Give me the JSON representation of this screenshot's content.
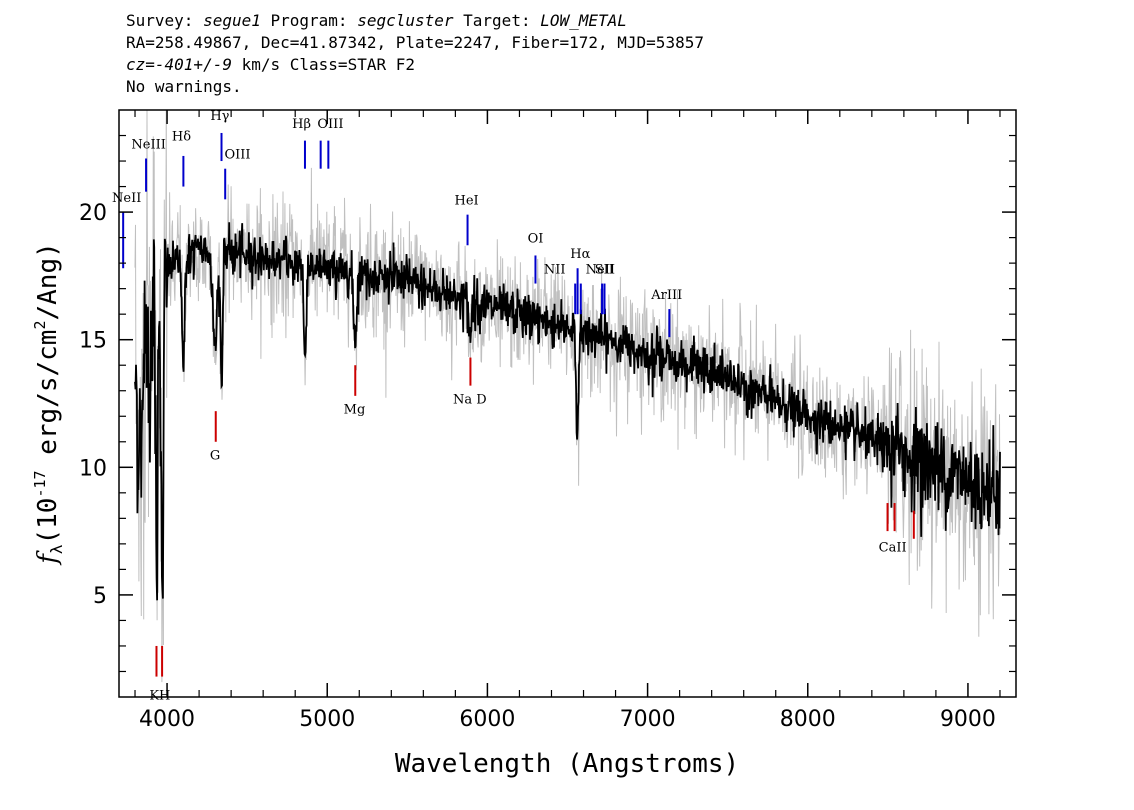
{
  "header": {
    "line1": {
      "survey_label": "Survey: ",
      "survey": "segue1",
      "program_label": " Program: ",
      "program": "segcluster",
      "target_label": " Target: ",
      "target": "LOW_METAL"
    },
    "line2": "RA=258.49867, Dec=41.87342, Plate=2247, Fiber=172, MJD=53857",
    "line3": {
      "cz": "cz",
      "cz_value": "=-401+/-9",
      "rest": " km/s Class=STAR F2"
    },
    "line4": "No warnings."
  },
  "colors": {
    "flux": "#000000",
    "error": "#c0c0c0",
    "emission": "#0000cc",
    "absorption": "#cc0000"
  },
  "chart_data": {
    "type": "line",
    "xlabel": "Wavelength (Angstroms)",
    "ylabel_text": "(10",
    "ylabel_exp": "-17",
    "ylabel_rest": " erg/s/cm",
    "ylabel_exp2": "2",
    "ylabel_end": "/Ang)",
    "ylabel_symbol": "f",
    "ylabel_sub": "λ",
    "xlim": [
      3700,
      9300
    ],
    "ylim": [
      1.0,
      24.0
    ],
    "xticks": [
      4000,
      5000,
      6000,
      7000,
      8000,
      9000
    ],
    "yticks": [
      5,
      10,
      15,
      20
    ],
    "continuum": {
      "x": [
        3800,
        3900,
        4000,
        4200,
        4500,
        5000,
        5500,
        6000,
        6500,
        7000,
        7500,
        8000,
        8500,
        9000,
        9200
      ],
      "y": [
        14.0,
        16.5,
        17.8,
        18.5,
        18.3,
        17.8,
        17.3,
        16.3,
        15.5,
        14.5,
        13.5,
        12.0,
        10.8,
        9.5,
        9.0
      ]
    },
    "absorption_features": [
      {
        "x": 3820,
        "depth": 3.5,
        "width": 8
      },
      {
        "x": 3840,
        "depth": 6.0,
        "width": 6
      },
      {
        "x": 3890,
        "depth": 4.0,
        "width": 6
      },
      {
        "x": 3935,
        "depth": 11.0,
        "width": 6
      },
      {
        "x": 3970,
        "depth": 13.5,
        "width": 7
      },
      {
        "x": 4102,
        "depth": 4.5,
        "width": 7
      },
      {
        "x": 4300,
        "depth": 4.0,
        "width": 12
      },
      {
        "x": 4340,
        "depth": 5.0,
        "width": 7
      },
      {
        "x": 4861,
        "depth": 4.0,
        "width": 7
      },
      {
        "x": 5175,
        "depth": 2.5,
        "width": 10
      },
      {
        "x": 5890,
        "depth": 1.5,
        "width": 8
      },
      {
        "x": 6563,
        "depth": 4.0,
        "width": 8
      }
    ],
    "emission_lines": [
      {
        "label": "NeII",
        "x": 3726,
        "y_bottom": 17.8,
        "y_top": 20.0,
        "lx": 3748,
        "ly": 20.4
      },
      {
        "label": "NeIII",
        "x": 3869,
        "y_bottom": 20.8,
        "y_top": 22.1,
        "lx": 3885,
        "ly": 22.5
      },
      {
        "label": "Hδ",
        "x": 4102,
        "y_bottom": 21.0,
        "y_top": 22.2,
        "lx": 4090,
        "ly": 22.8
      },
      {
        "label": "Hγ",
        "x": 4340,
        "y_bottom": 22.0,
        "y_top": 23.1,
        "lx": 4330,
        "ly": 23.6
      },
      {
        "label": "OIII",
        "x": 4363,
        "y_bottom": 20.5,
        "y_top": 21.7,
        "lx": 4440,
        "ly": 22.1
      },
      {
        "label": "Hβ",
        "x": 4861,
        "y_bottom": 21.7,
        "y_top": 22.8,
        "lx": 4840,
        "ly": 23.3
      },
      {
        "label": "OIII",
        "x": 4959,
        "y_bottom": 21.7,
        "y_top": 22.8,
        "lx": 5020,
        "ly": 23.3
      },
      {
        "label": "OIII",
        "x": 5007,
        "y_bottom": 21.7,
        "y_top": 22.8
      },
      {
        "label": "HeI",
        "x": 5876,
        "y_bottom": 18.7,
        "y_top": 19.9,
        "lx": 5870,
        "ly": 20.3
      },
      {
        "label": "OI",
        "x": 6300,
        "y_bottom": 17.2,
        "y_top": 18.3,
        "lx": 6300,
        "ly": 18.8
      },
      {
        "label": "NII",
        "x": 6548,
        "y_bottom": 16.0,
        "y_top": 17.2,
        "lx": 6420,
        "ly": 17.6
      },
      {
        "label": "Hα",
        "x": 6563,
        "y_bottom": 16.0,
        "y_top": 17.8,
        "lx": 6580,
        "ly": 18.2
      },
      {
        "label": "NII",
        "x": 6583,
        "y_bottom": 16.0,
        "y_top": 17.2
      },
      {
        "label": "SII",
        "x": 6716,
        "y_bottom": 16.0,
        "y_top": 17.2,
        "lx": 6730,
        "ly": 17.6
      },
      {
        "label": "SII",
        "x": 6731,
        "y_bottom": 16.0,
        "y_top": 17.2
      },
      {
        "label": "NeII",
        "x": 6716,
        "y_bottom": 16.0,
        "y_top": 17.0,
        "lx": 6705,
        "ly": 17.6
      },
      {
        "label": "ArIII",
        "x": 7136,
        "y_bottom": 15.1,
        "y_top": 16.2,
        "lx": 7120,
        "ly": 16.6
      }
    ],
    "absorption_lines": [
      {
        "label": "K",
        "x": 3934,
        "y_bottom": 1.8,
        "y_top": 3.0
      },
      {
        "label": "H",
        "x": 3969,
        "y_bottom": 1.8,
        "y_top": 3.0
      },
      {
        "label": "KH",
        "lx": 3955,
        "ly": 0.9
      },
      {
        "label": "G",
        "x": 4304,
        "y_bottom": 11.0,
        "y_top": 12.2,
        "lx": 4300,
        "ly": 10.3
      },
      {
        "label": "Mg",
        "x": 5175,
        "y_bottom": 12.8,
        "y_top": 14.0,
        "lx": 5170,
        "ly": 12.1
      },
      {
        "label": "Na D",
        "x": 5894,
        "y_bottom": 13.2,
        "y_top": 14.3,
        "lx": 5890,
        "ly": 12.5
      },
      {
        "label": "CaII",
        "x": 8498,
        "y_bottom": 7.5,
        "y_top": 8.6
      },
      {
        "label": "CaII",
        "x": 8542,
        "y_bottom": 7.5,
        "y_top": 8.6,
        "lx": 8530,
        "ly": 6.7
      },
      {
        "label": "CaII",
        "x": 8662,
        "y_bottom": 7.2,
        "y_top": 8.3
      }
    ]
  }
}
